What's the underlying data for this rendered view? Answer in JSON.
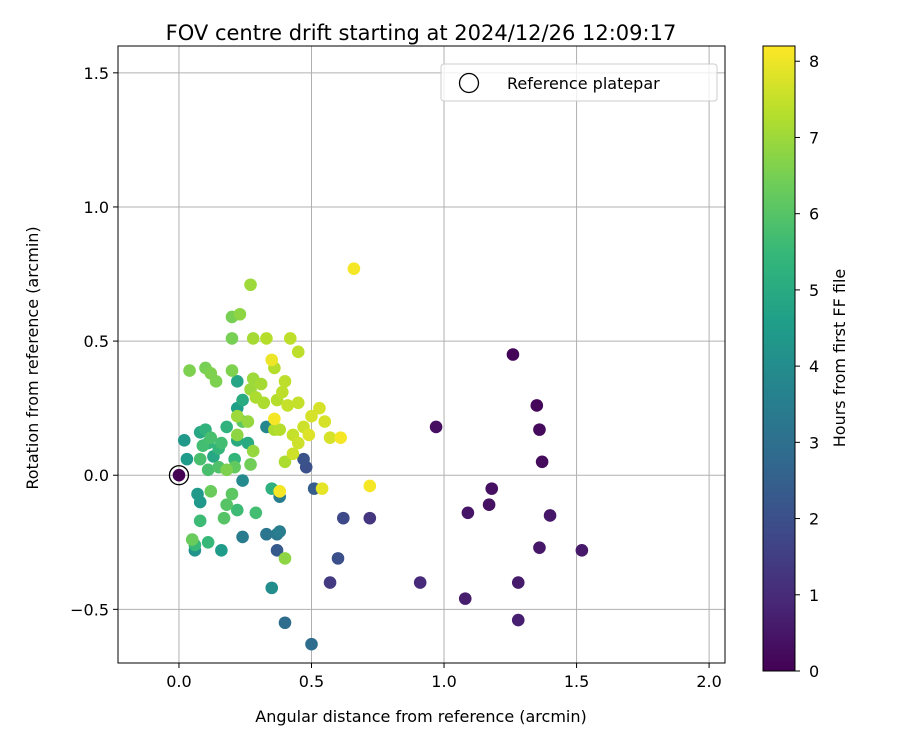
{
  "chart_data": {
    "type": "scatter",
    "title": "FOV centre drift starting at 2024/12/26 12:09:17",
    "xlabel": "Angular distance from reference (arcmin)",
    "ylabel": "Rotation from reference (arcmin)",
    "xlim": [
      -0.23,
      2.06
    ],
    "ylim": [
      -0.7,
      1.6
    ],
    "xticks": [
      0.0,
      0.5,
      1.0,
      1.5,
      2.0
    ],
    "yticks": [
      -0.5,
      0.0,
      0.5,
      1.0,
      1.5
    ],
    "xtick_labels": [
      "0.0",
      "0.5",
      "1.0",
      "1.5",
      "2.0"
    ],
    "ytick_labels": [
      "−0.5",
      "0.0",
      "0.5",
      "1.0",
      "1.5"
    ],
    "grid": true,
    "legend": {
      "position": "top-right",
      "entries": [
        {
          "label": "Reference platepar",
          "marker": "open-circle"
        }
      ]
    },
    "reference_point": {
      "x": 0.0,
      "y": 0.0
    },
    "colorbar": {
      "label": "Hours from first FF file",
      "colormap": "viridis",
      "range": [
        0,
        8.2
      ],
      "ticks": [
        0,
        1,
        2,
        3,
        4,
        5,
        6,
        7,
        8
      ],
      "tick_labels": [
        "0",
        "1",
        "2",
        "3",
        "4",
        "5",
        "6",
        "7",
        "8"
      ]
    },
    "points": [
      {
        "x": 0.0,
        "y": 0.0,
        "c": 0.0
      },
      {
        "x": 1.26,
        "y": 0.45,
        "c": 0.1
      },
      {
        "x": 1.35,
        "y": 0.26,
        "c": 0.15
      },
      {
        "x": 1.36,
        "y": 0.17,
        "c": 0.2
      },
      {
        "x": 1.37,
        "y": 0.05,
        "c": 0.25
      },
      {
        "x": 0.97,
        "y": 0.18,
        "c": 0.3
      },
      {
        "x": 1.18,
        "y": -0.05,
        "c": 0.35
      },
      {
        "x": 1.17,
        "y": -0.11,
        "c": 0.4
      },
      {
        "x": 1.09,
        "y": -0.14,
        "c": 0.45
      },
      {
        "x": 1.4,
        "y": -0.15,
        "c": 0.5
      },
      {
        "x": 1.36,
        "y": -0.27,
        "c": 0.5
      },
      {
        "x": 1.52,
        "y": -0.28,
        "c": 0.55
      },
      {
        "x": 1.28,
        "y": -0.4,
        "c": 0.6
      },
      {
        "x": 1.08,
        "y": -0.46,
        "c": 0.65
      },
      {
        "x": 1.28,
        "y": -0.54,
        "c": 0.7
      },
      {
        "x": 0.91,
        "y": -0.4,
        "c": 1.0
      },
      {
        "x": 0.72,
        "y": -0.16,
        "c": 1.3
      },
      {
        "x": 0.57,
        "y": -0.4,
        "c": 1.4
      },
      {
        "x": 0.62,
        "y": -0.16,
        "c": 1.8
      },
      {
        "x": 0.6,
        "y": -0.31,
        "c": 2.0
      },
      {
        "x": 0.48,
        "y": 0.03,
        "c": 2.0
      },
      {
        "x": 0.47,
        "y": 0.06,
        "c": 2.1
      },
      {
        "x": 0.51,
        "y": -0.05,
        "c": 2.4
      },
      {
        "x": 0.37,
        "y": -0.28,
        "c": 2.3
      },
      {
        "x": 0.5,
        "y": -0.63,
        "c": 2.9
      },
      {
        "x": 0.4,
        "y": -0.55,
        "c": 2.9
      },
      {
        "x": 0.33,
        "y": -0.22,
        "c": 3.2
      },
      {
        "x": 0.37,
        "y": -0.22,
        "c": 3.3
      },
      {
        "x": 0.24,
        "y": -0.23,
        "c": 3.4
      },
      {
        "x": 0.38,
        "y": -0.08,
        "c": 3.4
      },
      {
        "x": 0.38,
        "y": -0.21,
        "c": 3.5
      },
      {
        "x": 0.33,
        "y": 0.18,
        "c": 3.8
      },
      {
        "x": 0.24,
        "y": -0.02,
        "c": 3.9
      },
      {
        "x": 0.35,
        "y": -0.42,
        "c": 4.0
      },
      {
        "x": 0.06,
        "y": -0.28,
        "c": 4.2
      },
      {
        "x": 0.08,
        "y": -0.1,
        "c": 4.4
      },
      {
        "x": 0.07,
        "y": -0.07,
        "c": 4.4
      },
      {
        "x": 0.02,
        "y": 0.13,
        "c": 4.4
      },
      {
        "x": 0.03,
        "y": 0.06,
        "c": 4.5
      },
      {
        "x": 0.16,
        "y": -0.28,
        "c": 4.5
      },
      {
        "x": 0.22,
        "y": 0.25,
        "c": 4.6
      },
      {
        "x": 0.22,
        "y": 0.35,
        "c": 4.8
      },
      {
        "x": 0.08,
        "y": 0.16,
        "c": 4.9
      },
      {
        "x": 0.13,
        "y": 0.07,
        "c": 4.9
      },
      {
        "x": 0.22,
        "y": 0.13,
        "c": 5.0
      },
      {
        "x": 0.24,
        "y": 0.28,
        "c": 5.0
      },
      {
        "x": 0.26,
        "y": 0.12,
        "c": 5.0
      },
      {
        "x": 0.35,
        "y": -0.05,
        "c": 5.2
      },
      {
        "x": 0.18,
        "y": 0.18,
        "c": 5.3
      },
      {
        "x": 0.1,
        "y": 0.17,
        "c": 5.3
      },
      {
        "x": 0.11,
        "y": 0.12,
        "c": 5.4
      },
      {
        "x": 0.15,
        "y": 0.1,
        "c": 5.4
      },
      {
        "x": 0.21,
        "y": 0.06,
        "c": 5.4
      },
      {
        "x": 0.06,
        "y": -0.26,
        "c": 5.5
      },
      {
        "x": 0.11,
        "y": -0.25,
        "c": 5.5
      },
      {
        "x": 0.08,
        "y": -0.17,
        "c": 5.6
      },
      {
        "x": 0.22,
        "y": -0.13,
        "c": 5.6
      },
      {
        "x": 0.29,
        "y": -0.14,
        "c": 5.7
      },
      {
        "x": 0.09,
        "y": 0.11,
        "c": 5.7
      },
      {
        "x": 0.16,
        "y": 0.12,
        "c": 5.7
      },
      {
        "x": 0.08,
        "y": 0.06,
        "c": 5.8
      },
      {
        "x": 0.11,
        "y": 0.02,
        "c": 5.8
      },
      {
        "x": 0.12,
        "y": 0.14,
        "c": 5.8
      },
      {
        "x": 0.15,
        "y": 0.03,
        "c": 5.9
      },
      {
        "x": 0.18,
        "y": -0.11,
        "c": 6.0
      },
      {
        "x": 0.17,
        "y": -0.16,
        "c": 6.0
      },
      {
        "x": 0.2,
        "y": -0.07,
        "c": 6.1
      },
      {
        "x": 0.24,
        "y": 0.2,
        "c": 6.1
      },
      {
        "x": 0.21,
        "y": 0.03,
        "c": 6.2
      },
      {
        "x": 0.05,
        "y": -0.24,
        "c": 6.3
      },
      {
        "x": 0.12,
        "y": -0.06,
        "c": 6.3
      },
      {
        "x": 0.27,
        "y": 0.04,
        "c": 6.4
      },
      {
        "x": 0.2,
        "y": 0.59,
        "c": 6.5
      },
      {
        "x": 0.2,
        "y": 0.51,
        "c": 6.5
      },
      {
        "x": 0.1,
        "y": 0.4,
        "c": 6.5
      },
      {
        "x": 0.12,
        "y": 0.38,
        "c": 6.6
      },
      {
        "x": 0.14,
        "y": 0.35,
        "c": 6.6
      },
      {
        "x": 0.2,
        "y": 0.39,
        "c": 6.6
      },
      {
        "x": 0.04,
        "y": 0.39,
        "c": 6.6
      },
      {
        "x": 0.18,
        "y": 0.02,
        "c": 6.6
      },
      {
        "x": 0.23,
        "y": 0.6,
        "c": 6.8
      },
      {
        "x": 0.22,
        "y": 0.15,
        "c": 6.8
      },
      {
        "x": 0.26,
        "y": 0.2,
        "c": 6.9
      },
      {
        "x": 0.28,
        "y": 0.09,
        "c": 6.9
      },
      {
        "x": 0.27,
        "y": 0.71,
        "c": 7.0
      },
      {
        "x": 0.22,
        "y": 0.22,
        "c": 7.0
      },
      {
        "x": 0.27,
        "y": 0.32,
        "c": 7.0
      },
      {
        "x": 0.28,
        "y": 0.36,
        "c": 7.0
      },
      {
        "x": 0.4,
        "y": -0.31,
        "c": 6.8
      },
      {
        "x": 0.28,
        "y": 0.51,
        "c": 7.1
      },
      {
        "x": 0.31,
        "y": 0.34,
        "c": 7.1
      },
      {
        "x": 0.29,
        "y": 0.29,
        "c": 7.2
      },
      {
        "x": 0.32,
        "y": 0.27,
        "c": 7.2
      },
      {
        "x": 0.36,
        "y": 0.17,
        "c": 7.2
      },
      {
        "x": 0.4,
        "y": 0.05,
        "c": 7.2
      },
      {
        "x": 0.33,
        "y": 0.51,
        "c": 7.3
      },
      {
        "x": 0.36,
        "y": 0.4,
        "c": 7.3
      },
      {
        "x": 0.37,
        "y": 0.28,
        "c": 7.3
      },
      {
        "x": 0.38,
        "y": 0.17,
        "c": 7.3
      },
      {
        "x": 0.42,
        "y": 0.51,
        "c": 7.4
      },
      {
        "x": 0.45,
        "y": 0.46,
        "c": 7.4
      },
      {
        "x": 0.4,
        "y": 0.35,
        "c": 7.4
      },
      {
        "x": 0.39,
        "y": 0.31,
        "c": 7.4
      },
      {
        "x": 0.41,
        "y": 0.26,
        "c": 7.5
      },
      {
        "x": 0.45,
        "y": 0.27,
        "c": 7.5
      },
      {
        "x": 0.43,
        "y": 0.15,
        "c": 7.5
      },
      {
        "x": 0.45,
        "y": 0.12,
        "c": 7.6
      },
      {
        "x": 0.43,
        "y": 0.08,
        "c": 7.6
      },
      {
        "x": 0.38,
        "y": -0.06,
        "c": 7.6
      },
      {
        "x": 0.47,
        "y": 0.18,
        "c": 7.6
      },
      {
        "x": 0.5,
        "y": 0.22,
        "c": 7.7
      },
      {
        "x": 0.53,
        "y": 0.25,
        "c": 7.7
      },
      {
        "x": 0.55,
        "y": 0.2,
        "c": 7.7
      },
      {
        "x": 0.57,
        "y": 0.14,
        "c": 7.7
      },
      {
        "x": 0.49,
        "y": 0.15,
        "c": 7.8
      },
      {
        "x": 0.54,
        "y": -0.05,
        "c": 7.9
      },
      {
        "x": 0.66,
        "y": 0.77,
        "c": 8.1
      },
      {
        "x": 0.35,
        "y": 0.43,
        "c": 8.0
      },
      {
        "x": 0.61,
        "y": 0.14,
        "c": 8.1
      },
      {
        "x": 0.72,
        "y": -0.04,
        "c": 8.1
      },
      {
        "x": 0.38,
        "y": -0.06,
        "c": 8.1
      },
      {
        "x": 0.36,
        "y": 0.21,
        "c": 8.1
      }
    ]
  }
}
